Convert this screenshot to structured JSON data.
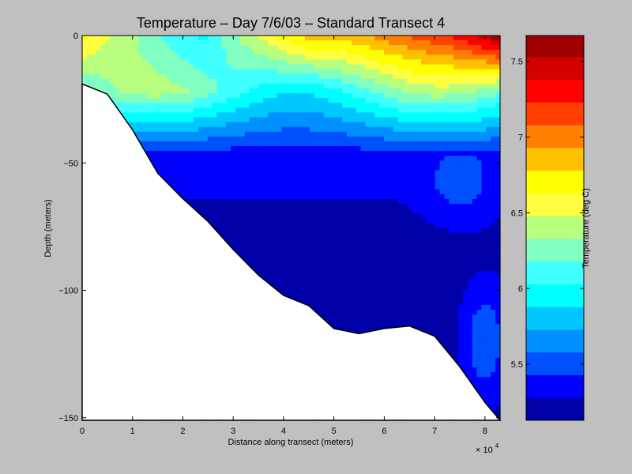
{
  "chart_data": {
    "type": "heatmap",
    "subtype": "filled-contour",
    "title": "Temperature – Day 7/6/03 – Standard Transect 4",
    "xlabel": "Distance along transect (meters)",
    "ylabel": "Depth (meters)",
    "x_multiplier_base": "× 10",
    "x_multiplier_exp": "4",
    "xlim": [
      0,
      83000
    ],
    "ylim": [
      -151,
      0
    ],
    "x_ticks": [
      {
        "value": 0,
        "label": "0"
      },
      {
        "value": 10000,
        "label": "1"
      },
      {
        "value": 20000,
        "label": "2"
      },
      {
        "value": 30000,
        "label": "3"
      },
      {
        "value": 40000,
        "label": "4"
      },
      {
        "value": 50000,
        "label": "5"
      },
      {
        "value": 60000,
        "label": "6"
      },
      {
        "value": 70000,
        "label": "7"
      },
      {
        "value": 80000,
        "label": "8"
      }
    ],
    "y_ticks": [
      {
        "value": 0,
        "label": "0"
      },
      {
        "value": -50,
        "label": "−50"
      },
      {
        "value": -100,
        "label": "−100"
      },
      {
        "value": -150,
        "label": "−150"
      }
    ],
    "colorbar": {
      "label": "Temperature (deg C)",
      "range": [
        5.13,
        7.67
      ],
      "ticks": [
        {
          "value": 5.5,
          "label": "5.5"
        },
        {
          "value": 6.0,
          "label": "6"
        },
        {
          "value": 6.5,
          "label": "6.5"
        },
        {
          "value": 7.0,
          "label": "7"
        },
        {
          "value": 7.5,
          "label": "7.5"
        }
      ],
      "levels": [
        {
          "low": 5.13,
          "high": 5.28,
          "color": "#0000a8"
        },
        {
          "low": 5.28,
          "high": 5.43,
          "color": "#0000ff"
        },
        {
          "low": 5.43,
          "high": 5.58,
          "color": "#0050ff"
        },
        {
          "low": 5.58,
          "high": 5.73,
          "color": "#0090ff"
        },
        {
          "low": 5.73,
          "high": 5.88,
          "color": "#00c8ff"
        },
        {
          "low": 5.88,
          "high": 6.03,
          "color": "#00ffff"
        },
        {
          "low": 6.03,
          "high": 6.18,
          "color": "#40ffff"
        },
        {
          "low": 6.18,
          "high": 6.33,
          "color": "#80ffc0"
        },
        {
          "low": 6.33,
          "high": 6.48,
          "color": "#b8ff80"
        },
        {
          "low": 6.48,
          "high": 6.63,
          "color": "#ffff40"
        },
        {
          "low": 6.63,
          "high": 6.78,
          "color": "#ffff00"
        },
        {
          "low": 6.78,
          "high": 6.93,
          "color": "#ffc000"
        },
        {
          "low": 6.93,
          "high": 7.08,
          "color": "#ff8000"
        },
        {
          "low": 7.08,
          "high": 7.23,
          "color": "#ff4000"
        },
        {
          "low": 7.23,
          "high": 7.38,
          "color": "#ff0000"
        },
        {
          "low": 7.38,
          "high": 7.53,
          "color": "#d40000"
        },
        {
          "low": 7.53,
          "high": 7.67,
          "color": "#a00000"
        }
      ]
    },
    "bathymetry": {
      "x": [
        0,
        5000,
        10000,
        15000,
        20000,
        25000,
        30000,
        35000,
        40000,
        45000,
        50000,
        55000,
        60000,
        65000,
        70000,
        75000,
        80000,
        83000
      ],
      "depth": [
        -19,
        -23,
        -37,
        -54,
        -64,
        -73,
        -84,
        -94,
        -102,
        -106,
        -115,
        -117,
        -115,
        -114,
        -118,
        -130,
        -144,
        -151
      ]
    },
    "temperature_field": {
      "x": [
        0,
        5000,
        10000,
        15000,
        20000,
        25000,
        30000,
        35000,
        40000,
        45000,
        50000,
        55000,
        60000,
        65000,
        70000,
        75000,
        80000,
        83000
      ],
      "depth": [
        0,
        -5,
        -10,
        -15,
        -20,
        -25,
        -30,
        -35,
        -40,
        -45,
        -50,
        -55,
        -60,
        -65,
        -70,
        -75,
        -80,
        -85,
        -90,
        -95,
        -100,
        -105,
        -110,
        -115,
        -120,
        -125,
        -130,
        -135,
        -140,
        -145,
        -150
      ],
      "surface_temperature_profile": [
        6.7,
        6.5,
        6.35,
        6.2,
        6.05,
        6.0,
        6.3,
        6.5,
        6.7,
        6.85,
        6.85,
        6.9,
        7.0,
        7.1,
        7.2,
        7.3,
        7.5,
        7.67
      ],
      "interior_minimum": {
        "x": 50000,
        "depth": -100,
        "temperature": 5.15
      }
    }
  }
}
